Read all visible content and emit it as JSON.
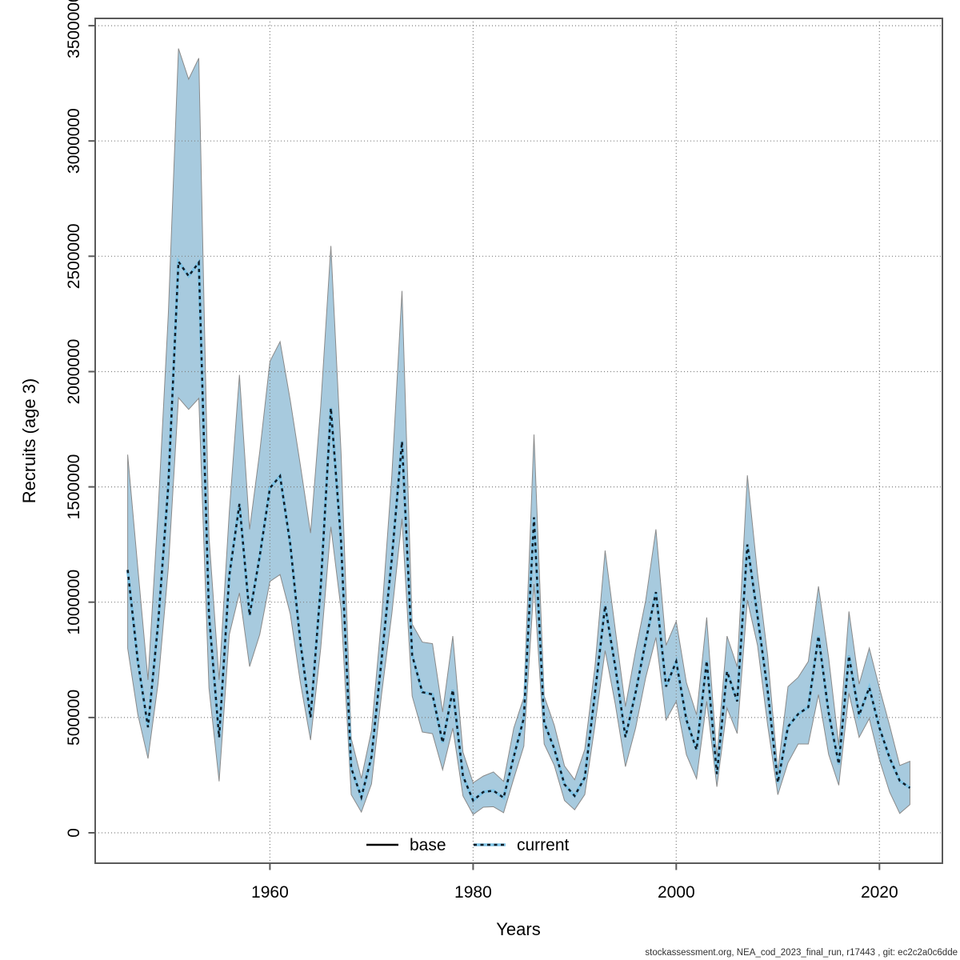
{
  "figure": {
    "background": "#ffffff"
  },
  "footer": {
    "text": "stockassessment.org, NEA_cod_2023_final_run, r17443 , git: ec2c2a0c6dde"
  },
  "legend": {
    "items": [
      {
        "label": "base",
        "style": "solid",
        "color": "#000000"
      },
      {
        "label": "current",
        "style": "dotted",
        "dash_color": "#111c26",
        "halo_color": "#7fc4e6"
      }
    ]
  },
  "chart_data": {
    "type": "line",
    "title": "",
    "xlabel": "Years",
    "ylabel": "Recruits (age 3)",
    "xlim": [
      1942.8,
      2026.2
    ],
    "ylim": [
      -131800,
      3531500
    ],
    "grid": "dotted",
    "grid_color": "#808080",
    "axis_color": "#5a5a5a",
    "x_ticks": {
      "values": [
        1960,
        1980,
        2000,
        2020
      ],
      "labels": [
        "1960",
        "1980",
        "2000",
        "2020"
      ]
    },
    "y_ticks": {
      "values": [
        0,
        500000,
        1000000,
        1500000,
        2000000,
        2500000,
        3000000,
        3500000
      ],
      "labels": [
        "0",
        "500000",
        "1000000",
        "1500000",
        "2000000",
        "2500000",
        "3000000",
        "3500000"
      ]
    },
    "years": [
      1946,
      1947,
      1948,
      1949,
      1950,
      1951,
      1952,
      1953,
      1954,
      1955,
      1956,
      1957,
      1958,
      1959,
      1960,
      1961,
      1962,
      1963,
      1964,
      1965,
      1966,
      1967,
      1968,
      1969,
      1970,
      1971,
      1972,
      1973,
      1974,
      1975,
      1976,
      1977,
      1978,
      1979,
      1980,
      1981,
      1982,
      1983,
      1984,
      1985,
      1986,
      1987,
      1988,
      1989,
      1990,
      1991,
      1992,
      1993,
      1994,
      1995,
      1996,
      1997,
      1998,
      1999,
      2000,
      2001,
      2002,
      2003,
      2004,
      2005,
      2006,
      2007,
      2008,
      2009,
      2010,
      2011,
      2012,
      2013,
      2014,
      2015,
      2016,
      2017,
      2018,
      2019,
      2020,
      2021,
      2022,
      2023
    ],
    "series": [
      {
        "name": "base",
        "style": "solid",
        "color": "#000000",
        "values": [
          1140000,
          743000,
          458000,
          910000,
          1507000,
          2477000,
          2414000,
          2473000,
          946000,
          414000,
          1114000,
          1426000,
          943000,
          1200000,
          1495000,
          1547000,
          1252000,
          825000,
          500000,
          1067000,
          1842000,
          1264000,
          281000,
          154000,
          330000,
          755000,
          1190000,
          1697000,
          770000,
          610000,
          600000,
          391000,
          620000,
          246000,
          140000,
          177000,
          183000,
          152000,
          330000,
          498000,
          1368000,
          478000,
          364000,
          210000,
          160000,
          240000,
          605000,
          985000,
          720000,
          415000,
          608000,
          832000,
          1044000,
          634000,
          743000,
          490000,
          360000,
          745000,
          255000,
          700000,
          570000,
          1250000,
          940000,
          615000,
          218000,
          460000,
          515000,
          545000,
          853000,
          520000,
          298000,
          767000,
          510000,
          630000,
          455000,
          325000,
          225000,
          195000
        ]
      },
      {
        "name": "current",
        "style": "dotted",
        "color": "#111c26",
        "halo_color": "#7fc4e6",
        "values": [
          1140000,
          743000,
          458000,
          910000,
          1507000,
          2477000,
          2414000,
          2473000,
          946000,
          414000,
          1114000,
          1426000,
          943000,
          1200000,
          1495000,
          1547000,
          1252000,
          825000,
          500000,
          1067000,
          1842000,
          1264000,
          281000,
          154000,
          330000,
          755000,
          1190000,
          1697000,
          770000,
          610000,
          600000,
          391000,
          620000,
          246000,
          140000,
          177000,
          183000,
          152000,
          330000,
          498000,
          1368000,
          478000,
          364000,
          210000,
          160000,
          240000,
          605000,
          985000,
          720000,
          415000,
          608000,
          832000,
          1044000,
          634000,
          743000,
          490000,
          360000,
          745000,
          255000,
          700000,
          570000,
          1250000,
          940000,
          615000,
          218000,
          460000,
          515000,
          545000,
          853000,
          520000,
          298000,
          767000,
          510000,
          630000,
          455000,
          325000,
          225000,
          195000
        ]
      }
    ],
    "band": {
      "name": "confidence-band",
      "fill": "#a7cade",
      "edge": "#8a8a8a",
      "lower": [
        800000,
        513000,
        322000,
        650000,
        1148000,
        1887000,
        1836000,
        1884000,
        628000,
        223000,
        859000,
        1040000,
        721000,
        860000,
        1090000,
        1120000,
        950000,
        651000,
        402000,
        800000,
        1327000,
        970000,
        166000,
        90000,
        212000,
        604000,
        950000,
        1362000,
        593000,
        437000,
        430000,
        273000,
        454000,
        160000,
        79000,
        111000,
        113000,
        87000,
        235000,
        376000,
        1079000,
        385000,
        292000,
        140000,
        100000,
        166000,
        466000,
        790000,
        558000,
        287000,
        454000,
        674000,
        847000,
        489000,
        570000,
        339000,
        235000,
        570000,
        200000,
        541000,
        431000,
        1009000,
        813000,
        466000,
        165000,
        304000,
        385000,
        385000,
        599000,
        340000,
        206000,
        605000,
        414000,
        495000,
        316000,
        177000,
        84000,
        122000
      ],
      "upper": [
        1640000,
        1148000,
        663000,
        1400000,
        2250000,
        3401000,
        3268000,
        3359000,
        1287000,
        663000,
        1391000,
        1986000,
        1316000,
        1653000,
        2044000,
        2130000,
        1876000,
        1593000,
        1300000,
        1850000,
        2545000,
        1650000,
        409000,
        236000,
        444000,
        940000,
        1550000,
        2350000,
        905000,
        827000,
        820000,
        524000,
        853000,
        350000,
        217000,
        246000,
        264000,
        223000,
        454000,
        587000,
        1727000,
        593000,
        466000,
        290000,
        230000,
        362000,
        721000,
        1224000,
        882000,
        547000,
        790000,
        1009000,
        1316000,
        813000,
        917000,
        651000,
        512000,
        934000,
        327000,
        853000,
        720000,
        1550000,
        1125000,
        767000,
        269000,
        634000,
        674000,
        743000,
        1069000,
        760000,
        379000,
        960000,
        645000,
        801000,
        628000,
        466000,
        292000,
        310000
      ]
    }
  }
}
